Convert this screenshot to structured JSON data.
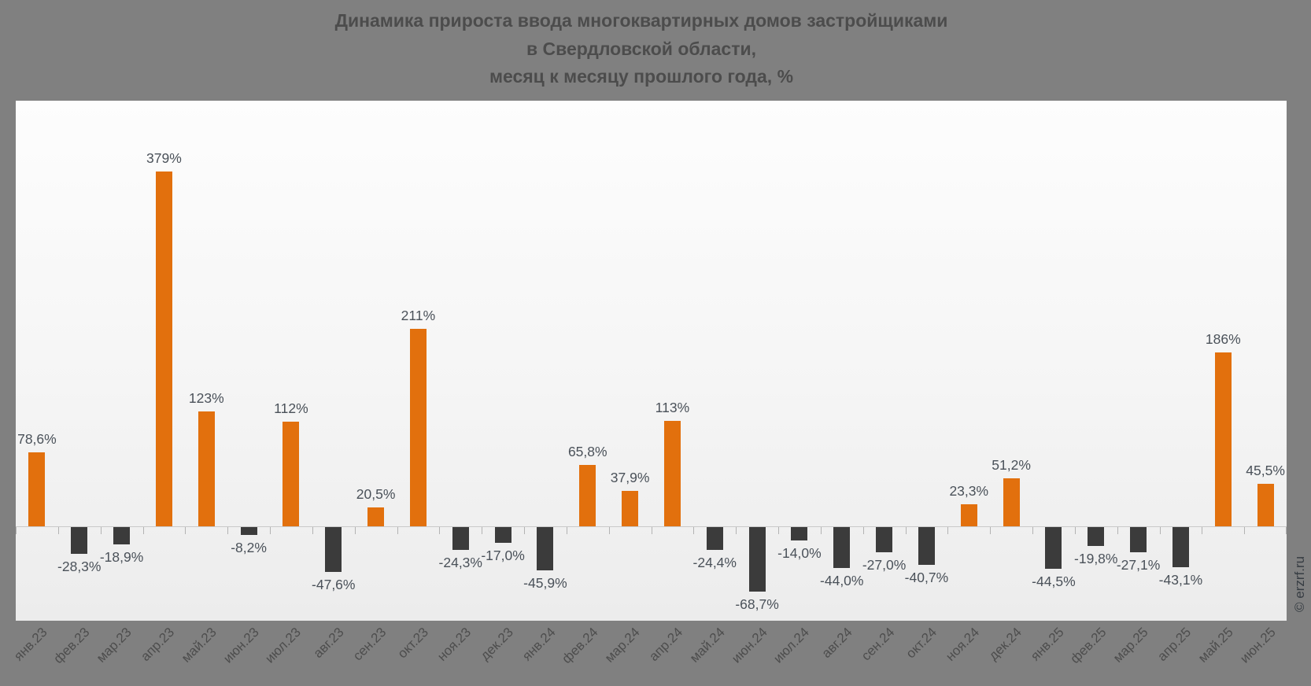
{
  "page": {
    "background": "#808080"
  },
  "title": {
    "line1": "Динамика прироста ввода многоквартирных домов застройщиками",
    "line2": "в Свердловской области,",
    "line3": "месяц к месяцу прошлого года, %"
  },
  "watermark": "© erzrf.ru",
  "chart_data": {
    "type": "bar",
    "title": "Динамика прироста ввода многоквартирных домов застройщиками в Свердловской области, месяц к месяцу прошлого года, %",
    "xlabel": "",
    "ylabel": "",
    "ylim": [
      -80,
      420
    ],
    "grid": false,
    "legend": false,
    "baseline": 0,
    "colors": {
      "positive": "#E2700D",
      "negative": "#3B3B3B"
    },
    "categories": [
      "янв.23",
      "фев.23",
      "мар.23",
      "апр.23",
      "май.23",
      "июн.23",
      "июл.23",
      "авг.23",
      "сен.23",
      "окт.23",
      "ноя.23",
      "дек.23",
      "янв.24",
      "фев.24",
      "мар.24",
      "апр.24",
      "май.24",
      "июн.24",
      "июл.24",
      "авг.24",
      "сен.24",
      "окт.24",
      "ноя.24",
      "дек.24",
      "янв.25",
      "фев.25",
      "мар.25",
      "апр.25",
      "май.25",
      "июн.25"
    ],
    "values": [
      78.6,
      -28.3,
      -18.9,
      379,
      123,
      -8.2,
      112,
      -47.6,
      20.5,
      211,
      -24.3,
      -17.0,
      -45.9,
      65.8,
      37.9,
      113,
      -24.4,
      -68.7,
      -14.0,
      -44.0,
      -27.0,
      -40.7,
      23.3,
      51.2,
      -44.5,
      -19.8,
      -27.1,
      -43.1,
      186,
      45.5
    ],
    "value_labels": [
      "78,6%",
      "-28,3%",
      "-18,9%",
      "379%",
      "123%",
      "-8,2%",
      "112%",
      "-47,6%",
      "20,5%",
      "211%",
      "-24,3%",
      "-17,0%",
      "-45,9%",
      "65,8%",
      "37,9%",
      "113%",
      "-24,4%",
      "-68,7%",
      "-14,0%",
      "-44,0%",
      "-27,0%",
      "-40,7%",
      "23,3%",
      "51,2%",
      "-44,5%",
      "-19,8%",
      "-27,1%",
      "-43,1%",
      "186%",
      "45,5%"
    ]
  }
}
